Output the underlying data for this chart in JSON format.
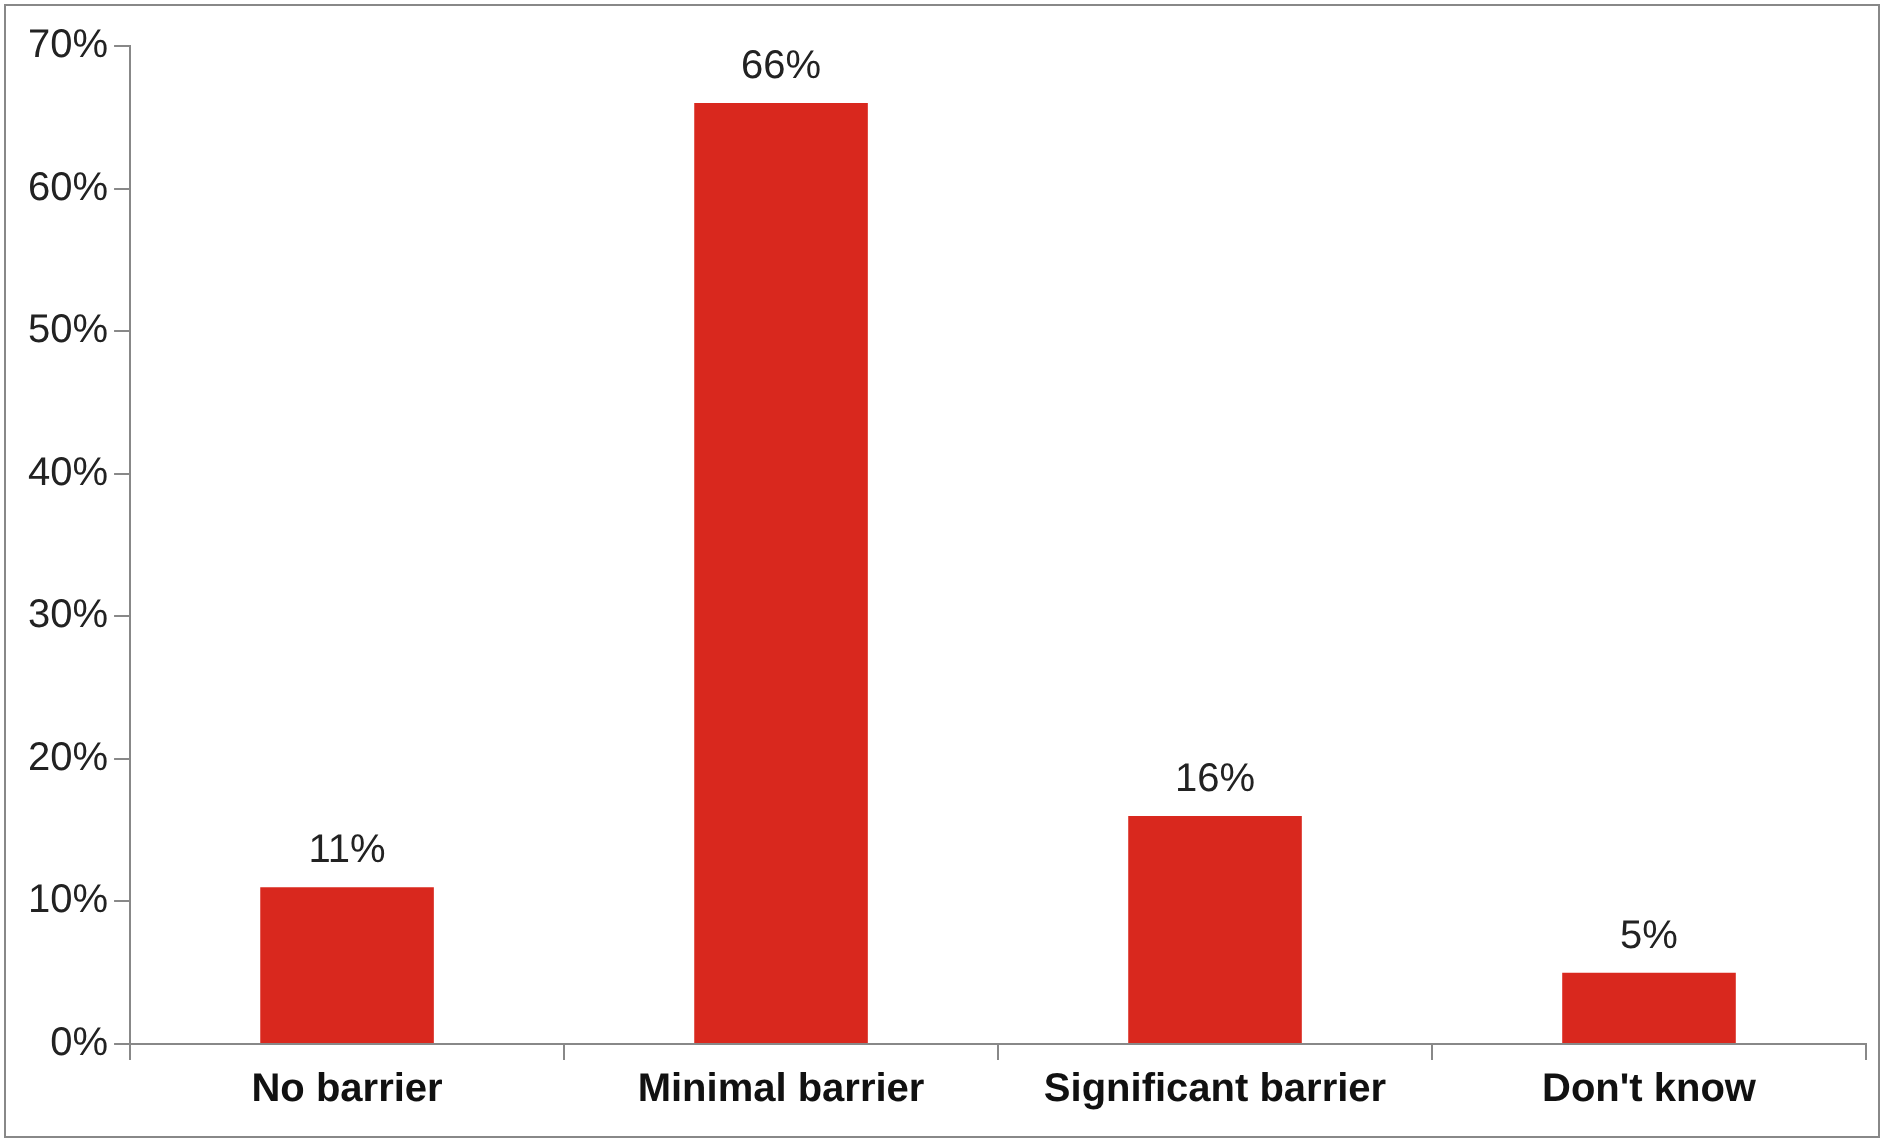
{
  "chart_data": {
    "type": "bar",
    "categories": [
      "No barrier",
      "Minimal barrier",
      "Significant barrier",
      "Don't know"
    ],
    "values": [
      11,
      66,
      16,
      5
    ],
    "value_labels": [
      "11%",
      "66%",
      "16%",
      "5%"
    ],
    "color": "#d9281e",
    "ylim": [
      0,
      70
    ],
    "yticks": [
      {
        "value": 0,
        "label": "0%"
      },
      {
        "value": 10,
        "label": "10%"
      },
      {
        "value": 20,
        "label": "20%"
      },
      {
        "value": 30,
        "label": "30%"
      },
      {
        "value": 40,
        "label": "40%"
      },
      {
        "value": 50,
        "label": "50%"
      },
      {
        "value": 60,
        "label": "60%"
      },
      {
        "value": 70,
        "label": "70%"
      }
    ],
    "grid": false,
    "legend": false
  }
}
